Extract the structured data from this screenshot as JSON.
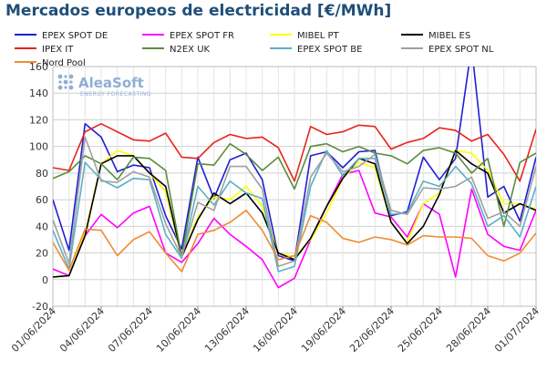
{
  "chart_data": {
    "type": "line",
    "title": "Mercados europeos de electricidad [€/MWh]",
    "ylim": [
      -20,
      160
    ],
    "yticks": [
      -20,
      0,
      20,
      40,
      60,
      80,
      100,
      120,
      140,
      160
    ],
    "grid": true,
    "legend_position": "top",
    "x": [
      "01/06/2024",
      "02/06/2024",
      "03/06/2024",
      "04/06/2024",
      "05/06/2024",
      "06/06/2024",
      "07/06/2024",
      "08/06/2024",
      "09/06/2024",
      "10/06/2024",
      "11/06/2024",
      "12/06/2024",
      "13/06/2024",
      "14/06/2024",
      "15/06/2024",
      "16/06/2024",
      "17/06/2024",
      "18/06/2024",
      "19/06/2024",
      "20/06/2024",
      "21/06/2024",
      "22/06/2024",
      "23/06/2024",
      "24/06/2024",
      "25/06/2024",
      "26/06/2024",
      "27/06/2024",
      "28/06/2024",
      "29/06/2024",
      "30/06/2024",
      "01/07/2024"
    ],
    "x_tick_labels": [
      "01/06/2024",
      "04/06/2024",
      "07/06/2024",
      "10/06/2024",
      "13/06/2024",
      "16/06/2024",
      "19/06/2024",
      "22/06/2024",
      "25/06/2024",
      "28/06/2024",
      "01/07/2024"
    ],
    "series": [
      {
        "name": "EPEX SPOT DE",
        "color": "#1f1fd6",
        "values": [
          60,
          22,
          117,
          107,
          81,
          86,
          84,
          48,
          23,
          92,
          61,
          90,
          95,
          75,
          18,
          14,
          93,
          96,
          84,
          96,
          97,
          48,
          51,
          92,
          75,
          91,
          175,
          62,
          70,
          44,
          92
        ]
      },
      {
        "name": "EPEX SPOT FR",
        "color": "#ff00ff",
        "values": [
          8,
          3,
          33,
          49,
          39,
          50,
          55,
          20,
          13,
          27,
          46,
          34,
          25,
          15,
          -6,
          1,
          30,
          55,
          79,
          82,
          50,
          47,
          32,
          57,
          49,
          2,
          68,
          34,
          25,
          22,
          52
        ]
      },
      {
        "name": "MIBEL PT",
        "color": "#ffff00",
        "values": [
          2,
          3,
          35,
          87,
          97,
          93,
          80,
          66,
          17,
          47,
          62,
          60,
          70,
          55,
          20,
          17,
          30,
          50,
          76,
          88,
          84,
          43,
          28,
          57,
          65,
          97,
          95,
          82,
          57,
          57,
          53
        ]
      },
      {
        "name": "MIBEL ES",
        "color": "#000000",
        "values": [
          2,
          3,
          33,
          87,
          93,
          93,
          80,
          70,
          17,
          45,
          65,
          57,
          65,
          50,
          20,
          15,
          31,
          55,
          76,
          91,
          87,
          43,
          27,
          40,
          64,
          97,
          87,
          80,
          50,
          57,
          52
        ]
      },
      {
        "name": "IPEX IT",
        "color": "#e8231a",
        "values": [
          84,
          82,
          111,
          117,
          111,
          105,
          104,
          110,
          92,
          91,
          103,
          109,
          106,
          107,
          99,
          74,
          115,
          109,
          111,
          116,
          115,
          98,
          103,
          106,
          114,
          112,
          104,
          109,
          94,
          74,
          113
        ]
      },
      {
        "name": "N2EX UK",
        "color": "#5b8c3e",
        "values": [
          76,
          81,
          93,
          87,
          75,
          92,
          91,
          82,
          17,
          87,
          86,
          102,
          94,
          82,
          92,
          68,
          100,
          102,
          96,
          100,
          95,
          93,
          87,
          97,
          99,
          95,
          80,
          91,
          40,
          88,
          95
        ]
      },
      {
        "name": "EPEX SPOT BE",
        "color": "#5aafc8",
        "values": [
          37,
          8,
          88,
          75,
          69,
          76,
          75,
          34,
          16,
          70,
          56,
          74,
          65,
          61,
          6,
          10,
          70,
          97,
          78,
          91,
          91,
          49,
          50,
          74,
          70,
          85,
          72,
          40,
          48,
          32,
          70
        ]
      },
      {
        "name": "EPEX SPOT NL",
        "color": "#a0a0a0",
        "values": [
          45,
          12,
          107,
          74,
          73,
          81,
          77,
          42,
          17,
          58,
          52,
          85,
          85,
          68,
          10,
          14,
          77,
          95,
          81,
          85,
          94,
          52,
          49,
          69,
          68,
          70,
          77,
          46,
          51,
          40,
          85
        ]
      },
      {
        "name": "Nord Pool",
        "color": "#f08a34",
        "values": [
          28,
          7,
          38,
          37,
          18,
          30,
          36,
          20,
          6,
          34,
          37,
          43,
          52,
          37,
          15,
          18,
          48,
          43,
          31,
          28,
          32,
          30,
          26,
          33,
          32,
          32,
          31,
          18,
          14,
          20,
          35
        ]
      }
    ]
  },
  "logo": {
    "name": "AleaSoft",
    "tagline": "ENERGY FORECASTING"
  }
}
